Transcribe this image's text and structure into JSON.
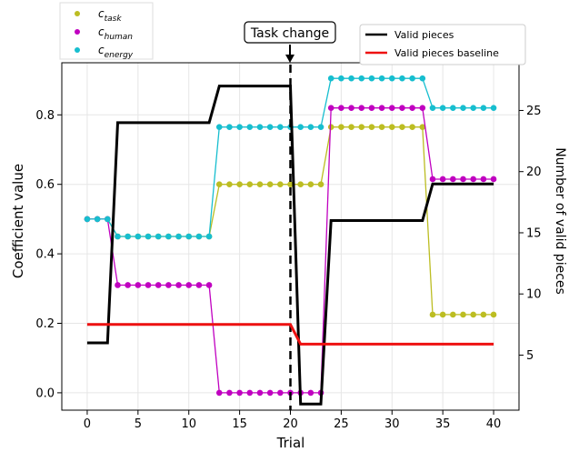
{
  "chart_data": {
    "type": "line",
    "xlabel": "Trial",
    "ylabel_left": "Coefficient value",
    "ylabel_right": "Number of valid pieces",
    "xlim": [
      -2.5,
      42.5
    ],
    "ylim_left": [
      -0.05,
      0.95
    ],
    "ylim_right": [
      0.5,
      28.9
    ],
    "x_ticks": [
      0,
      5,
      10,
      15,
      20,
      25,
      30,
      35,
      40
    ],
    "y_left_ticks": [
      "0.0",
      "0.2",
      "0.4",
      "0.6",
      "0.8"
    ],
    "y_right_ticks": [
      "5",
      "10",
      "15",
      "20",
      "25"
    ],
    "grid": true,
    "annotation": {
      "text": "Task change",
      "x": 20,
      "style": "dashed vertical line with arrow"
    },
    "legend_left": {
      "placement": "top-left",
      "entries": [
        {
          "base": "c",
          "sub": "task",
          "color": "#bcbd22"
        },
        {
          "base": "c",
          "sub": "human",
          "color": "#c000c0"
        },
        {
          "base": "c",
          "sub": "energy",
          "color": "#17becf"
        }
      ]
    },
    "legend_right": {
      "placement": "top-right",
      "entries": [
        {
          "label": "Valid pieces",
          "color": "#000000"
        },
        {
          "label": "Valid pieces baseline",
          "color": "#ee1111"
        }
      ]
    },
    "coefficient_series": [
      {
        "name": "c_task",
        "color": "#bcbd22",
        "x": [
          0,
          1,
          2,
          3,
          4,
          5,
          6,
          7,
          8,
          9,
          10,
          11,
          12,
          13,
          14,
          15,
          16,
          17,
          18,
          19,
          20,
          21,
          22,
          23,
          24,
          25,
          26,
          27,
          28,
          29,
          30,
          31,
          32,
          33,
          34,
          35,
          36,
          37,
          38,
          39,
          40
        ],
        "y": [
          0.5,
          0.5,
          0.5,
          0.45,
          0.45,
          0.45,
          0.45,
          0.45,
          0.45,
          0.45,
          0.45,
          0.45,
          0.45,
          0.6,
          0.6,
          0.6,
          0.6,
          0.6,
          0.6,
          0.6,
          0.6,
          0.6,
          0.6,
          0.6,
          0.765,
          0.765,
          0.765,
          0.765,
          0.765,
          0.765,
          0.765,
          0.765,
          0.765,
          0.765,
          0.225,
          0.225,
          0.225,
          0.225,
          0.225,
          0.225,
          0.225
        ]
      },
      {
        "name": "c_human",
        "color": "#c000c0",
        "x": [
          0,
          1,
          2,
          3,
          4,
          5,
          6,
          7,
          8,
          9,
          10,
          11,
          12,
          13,
          14,
          15,
          16,
          17,
          18,
          19,
          20,
          21,
          22,
          23,
          24,
          25,
          26,
          27,
          28,
          29,
          30,
          31,
          32,
          33,
          34,
          35,
          36,
          37,
          38,
          39,
          40
        ],
        "y": [
          0.5,
          0.5,
          0.5,
          0.31,
          0.31,
          0.31,
          0.31,
          0.31,
          0.31,
          0.31,
          0.31,
          0.31,
          0.31,
          0.0,
          0.0,
          0.0,
          0.0,
          0.0,
          0.0,
          0.0,
          0.0,
          0.0,
          0.0,
          0.0,
          0.82,
          0.82,
          0.82,
          0.82,
          0.82,
          0.82,
          0.82,
          0.82,
          0.82,
          0.82,
          0.615,
          0.615,
          0.615,
          0.615,
          0.615,
          0.615,
          0.615
        ]
      },
      {
        "name": "c_energy",
        "color": "#17becf",
        "x": [
          0,
          1,
          2,
          3,
          4,
          5,
          6,
          7,
          8,
          9,
          10,
          11,
          12,
          13,
          14,
          15,
          16,
          17,
          18,
          19,
          20,
          21,
          22,
          23,
          24,
          25,
          26,
          27,
          28,
          29,
          30,
          31,
          32,
          33,
          34,
          35,
          36,
          37,
          38,
          39,
          40
        ],
        "y": [
          0.5,
          0.5,
          0.5,
          0.45,
          0.45,
          0.45,
          0.45,
          0.45,
          0.45,
          0.45,
          0.45,
          0.45,
          0.45,
          0.765,
          0.765,
          0.765,
          0.765,
          0.765,
          0.765,
          0.765,
          0.765,
          0.765,
          0.765,
          0.765,
          0.905,
          0.905,
          0.905,
          0.905,
          0.905,
          0.905,
          0.905,
          0.905,
          0.905,
          0.905,
          0.82,
          0.82,
          0.82,
          0.82,
          0.82,
          0.82,
          0.82
        ]
      }
    ],
    "pieces_series": [
      {
        "name": "Valid pieces",
        "color": "#000000",
        "x": [
          0,
          2,
          3,
          12,
          13,
          20,
          21,
          23,
          24,
          33,
          34,
          40
        ],
        "y": [
          6,
          6,
          24,
          24,
          27,
          27,
          1,
          1,
          16,
          16,
          19,
          19
        ]
      },
      {
        "name": "Valid pieces baseline",
        "color": "#ee1111",
        "x": [
          0,
          20,
          21,
          40
        ],
        "y": [
          7.5,
          7.5,
          5.9,
          5.9
        ]
      }
    ]
  }
}
